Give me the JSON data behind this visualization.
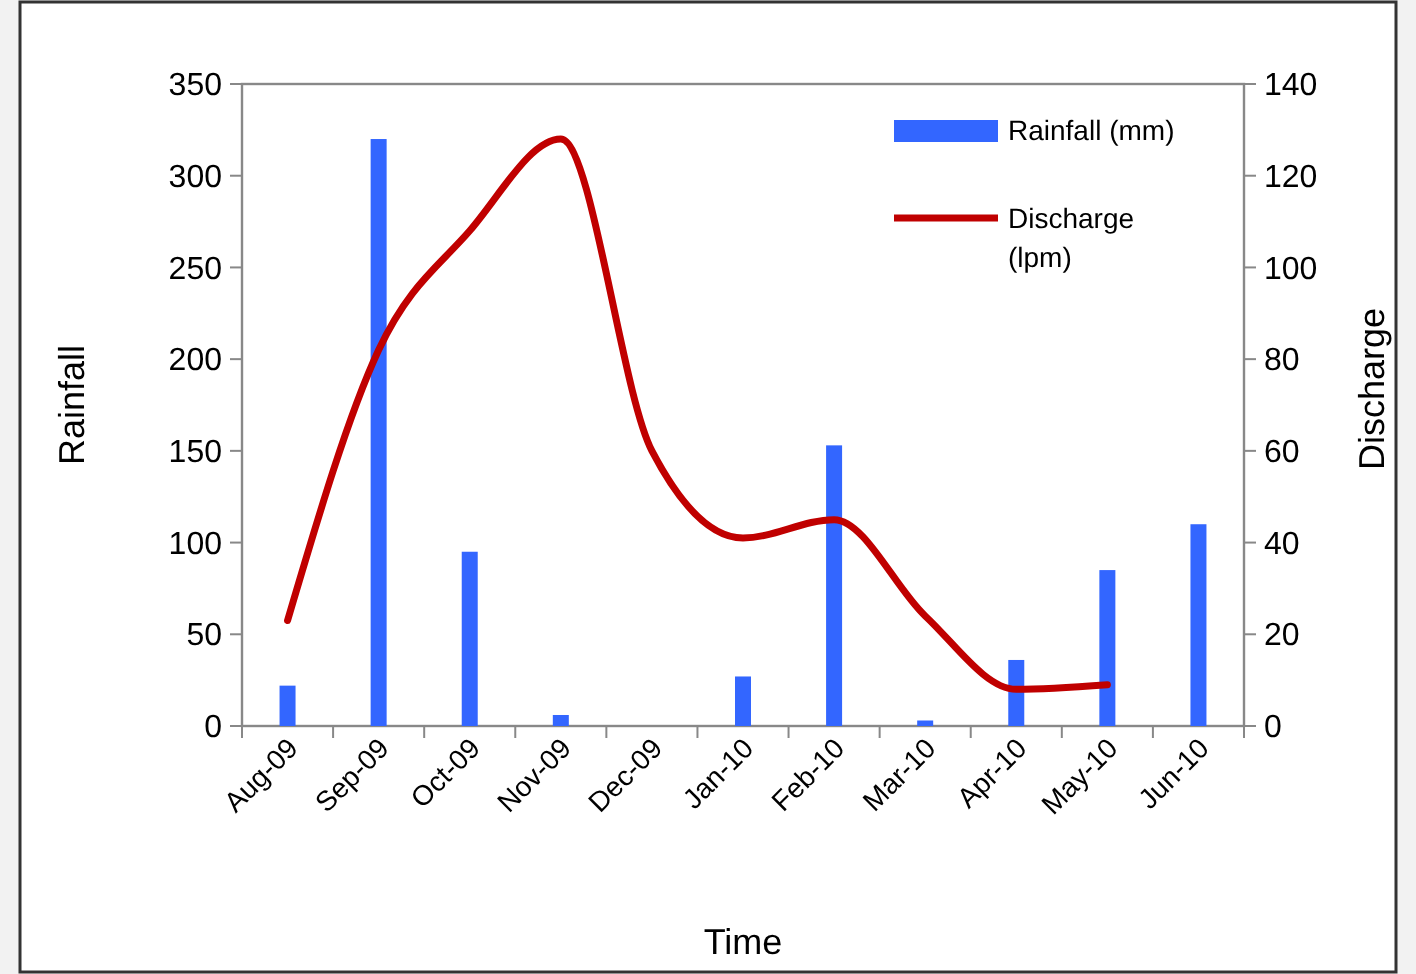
{
  "chart_data": {
    "type": "bar",
    "xlabel": "Time",
    "ylabel": "Rainfall",
    "y2label": "Discharge",
    "categories": [
      "Aug-09",
      "Sep-09",
      "Oct-09",
      "Nov-09",
      "Dec-09",
      "Jan-10",
      "Feb-10",
      "Mar-10",
      "Apr-10",
      "May-10",
      "Jun-10"
    ],
    "series": [
      {
        "name": "Rainfall (mm)",
        "color": "#3366ff",
        "values": [
          22,
          320,
          95,
          6,
          0,
          27,
          153,
          3,
          36,
          85,
          110
        ]
      },
      {
        "name": "Discharge (lpm)",
        "type": "line",
        "axis": "y2",
        "color": "#c00000",
        "marker": "none",
        "values": [
          23,
          82,
          108,
          128,
          60,
          41,
          45,
          24,
          8,
          9,
          null
        ]
      }
    ],
    "ylim": [
      0,
      350
    ],
    "yticks": [
      0,
      50,
      100,
      150,
      200,
      250,
      300,
      350
    ],
    "y2lim": [
      0,
      140
    ],
    "y2ticks": [
      0,
      20,
      40,
      60,
      80,
      100,
      120,
      140
    ],
    "grid": false,
    "legend": "top right"
  }
}
